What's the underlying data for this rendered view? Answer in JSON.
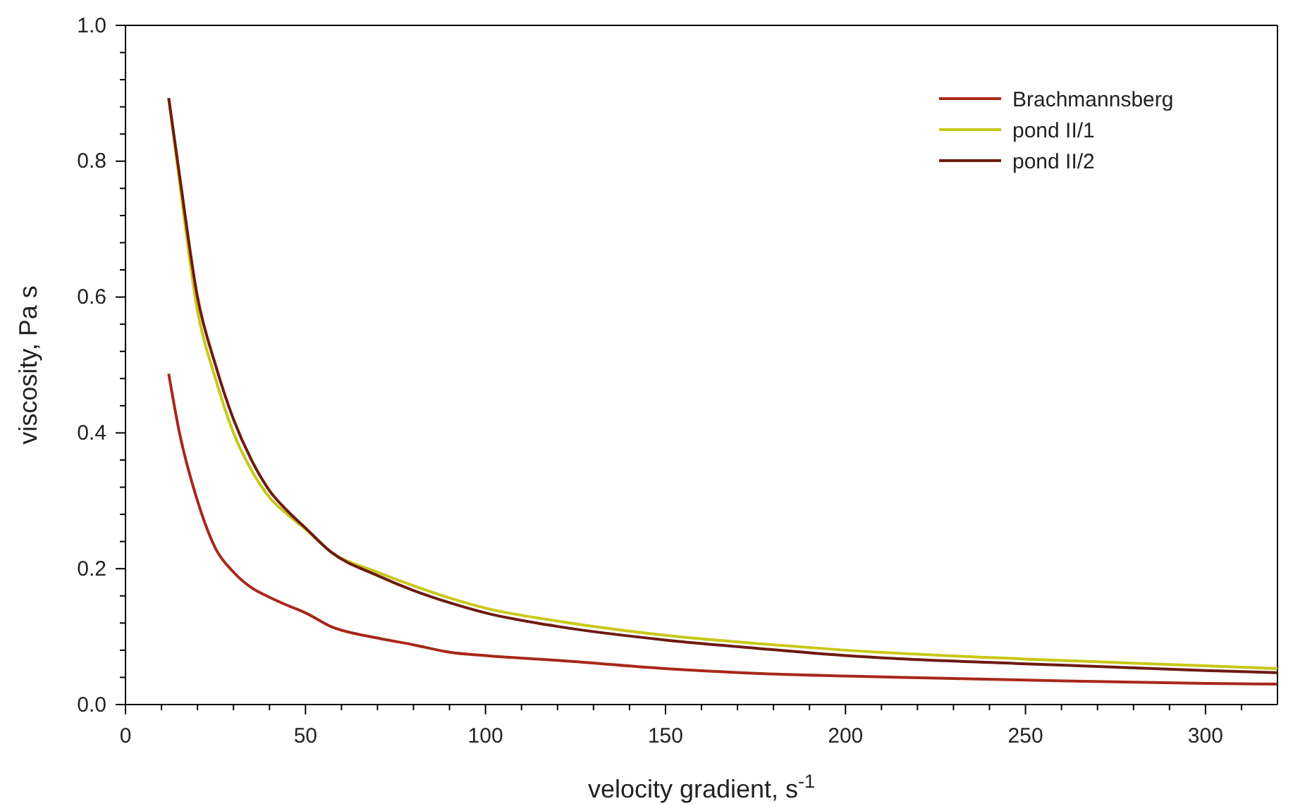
{
  "chart_data": {
    "type": "line",
    "xlabel": "velocity gradient, s$^{-1}$",
    "ylabel": "viscosity, Pa s",
    "xlim": [
      0,
      320
    ],
    "ylim": [
      0,
      1.0
    ],
    "xticks": [
      0,
      {
        "value": 10,
        "label": null
      },
      {
        "value": 20,
        "label": null
      },
      {
        "value": 30,
        "label": null
      },
      {
        "value": 40,
        "label": null
      },
      50,
      {
        "value": 60,
        "label": null
      },
      {
        "value": 70,
        "label": null
      },
      {
        "value": 80,
        "label": null
      },
      {
        "value": 90,
        "label": null
      },
      100,
      {
        "value": 110,
        "label": null
      },
      {
        "value": 120,
        "label": null
      },
      {
        "value": 130,
        "label": null
      },
      {
        "value": 140,
        "label": null
      },
      150,
      {
        "value": 160,
        "label": null
      },
      {
        "value": 170,
        "label": null
      },
      {
        "value": 180,
        "label": null
      },
      {
        "value": 190,
        "label": null
      },
      200,
      {
        "value": 210,
        "label": null
      },
      {
        "value": 220,
        "label": null
      },
      {
        "value": 230,
        "label": null
      },
      {
        "value": 240,
        "label": null
      },
      250,
      {
        "value": 260,
        "label": null
      },
      {
        "value": 270,
        "label": null
      },
      {
        "value": 280,
        "label": null
      },
      {
        "value": 290,
        "label": null
      },
      300,
      {
        "value": 310,
        "label": null
      }
    ],
    "yticks": [
      {
        "value": 0,
        "label": "0.0"
      },
      {
        "value": 0.04,
        "label": null
      },
      {
        "value": 0.08,
        "label": null
      },
      {
        "value": 0.12,
        "label": null
      },
      {
        "value": 0.16,
        "label": null
      },
      0.2,
      {
        "value": 0.24,
        "label": null
      },
      {
        "value": 0.28,
        "label": null
      },
      {
        "value": 0.32,
        "label": null
      },
      {
        "value": 0.36,
        "label": null
      },
      0.4,
      {
        "value": 0.44,
        "label": null
      },
      {
        "value": 0.48,
        "label": null
      },
      {
        "value": 0.52,
        "label": null
      },
      {
        "value": 0.56,
        "label": null
      },
      0.6,
      {
        "value": 0.64,
        "label": null
      },
      {
        "value": 0.68,
        "label": null
      },
      {
        "value": 0.72,
        "label": null
      },
      {
        "value": 0.76,
        "label": null
      },
      0.8,
      {
        "value": 0.84,
        "label": null
      },
      {
        "value": 0.88,
        "label": null
      },
      {
        "value": 0.92,
        "label": null
      },
      {
        "value": 0.96,
        "label": null
      },
      {
        "value": 1.0,
        "label": "1.0"
      }
    ],
    "legend": "top right",
    "grid": false,
    "marker": "none",
    "line_style": "solid",
    "x": [
      12,
      15,
      20,
      25,
      30,
      35,
      40,
      45,
      50,
      57,
      70,
      80,
      90,
      100,
      120,
      150,
      175,
      200,
      250,
      300,
      320
    ],
    "series": [
      {
        "name": "Brachmannsberg",
        "color": "#a8281a",
        "values": [
          0.487,
          0.4,
          0.3,
          0.23,
          0.195,
          0.172,
          0.158,
          0.146,
          0.135,
          0.115,
          0.098,
          0.088,
          0.077,
          0.072,
          0.065,
          0.053,
          0.046,
          0.042,
          0.036,
          0.031,
          0.03
        ]
      },
      {
        "name": "pond II/1",
        "color": "#c8c818",
        "values": [
          0.893,
          0.77,
          0.58,
          0.48,
          0.4,
          0.345,
          0.305,
          0.28,
          0.258,
          0.225,
          0.195,
          0.175,
          0.157,
          0.142,
          0.123,
          0.102,
          0.09,
          0.08,
          0.067,
          0.057,
          0.053
        ]
      },
      {
        "name": "pond II/2",
        "color": "#6e1a10",
        "values": [
          0.893,
          0.78,
          0.6,
          0.5,
          0.42,
          0.36,
          0.315,
          0.285,
          0.26,
          0.225,
          0.19,
          0.168,
          0.15,
          0.135,
          0.115,
          0.095,
          0.083,
          0.072,
          0.06,
          0.05,
          0.047
        ]
      }
    ]
  }
}
